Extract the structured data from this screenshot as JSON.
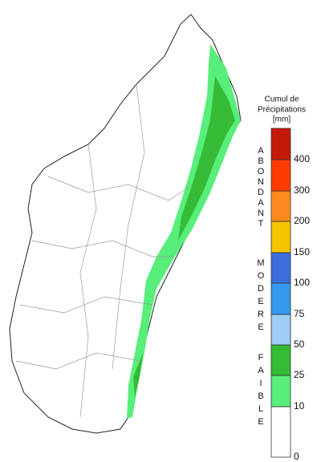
{
  "legend": {
    "title": [
      "Cumul de",
      "Précipitations",
      "[mm]"
    ],
    "ticks": [
      0,
      10,
      25,
      50,
      75,
      100,
      150,
      200,
      300,
      400
    ],
    "colors": [
      "#ffffff",
      "#57ee7a",
      "#35bb35",
      "#9ccdf4",
      "#3399ee",
      "#3b6edc",
      "#f5c400",
      "#ff8a1f",
      "#ff3c00",
      "#c41a0a"
    ],
    "groups": [
      "FAIBLE",
      "MODERE",
      "ABONDANT"
    ]
  }
}
